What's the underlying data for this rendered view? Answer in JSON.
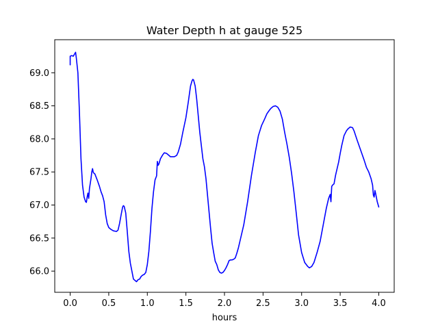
{
  "chart_data": {
    "type": "line",
    "title": "Water Depth h at gauge 525",
    "xlabel": "hours",
    "ylabel": "",
    "xlim": [
      -0.2,
      4.2
    ],
    "ylim": [
      65.68,
      69.5
    ],
    "xticks": [
      0.0,
      0.5,
      1.0,
      1.5,
      2.0,
      2.5,
      3.0,
      3.5,
      4.0
    ],
    "xtick_labels": [
      "0.0",
      "0.5",
      "1.0",
      "1.5",
      "2.0",
      "2.5",
      "3.0",
      "3.5",
      "4.0"
    ],
    "yticks": [
      66.0,
      66.5,
      67.0,
      67.5,
      68.0,
      68.5,
      69.0
    ],
    "ytick_labels": [
      "66.0",
      "66.5",
      "67.0",
      "67.5",
      "68.0",
      "68.5",
      "69.0"
    ],
    "grid": false,
    "legend": "none",
    "series": [
      {
        "color": "#0000ff",
        "points": [
          [
            0.0,
            69.12
          ],
          [
            0.0,
            69.25
          ],
          [
            0.02,
            69.26
          ],
          [
            0.04,
            69.25
          ],
          [
            0.06,
            69.29
          ],
          [
            0.07,
            69.31
          ],
          [
            0.08,
            69.22
          ],
          [
            0.1,
            69.0
          ],
          [
            0.12,
            68.4
          ],
          [
            0.14,
            67.7
          ],
          [
            0.16,
            67.3
          ],
          [
            0.18,
            67.12
          ],
          [
            0.2,
            67.05
          ],
          [
            0.21,
            67.04
          ],
          [
            0.22,
            67.12
          ],
          [
            0.23,
            67.18
          ],
          [
            0.24,
            67.1
          ],
          [
            0.25,
            67.25
          ],
          [
            0.27,
            67.4
          ],
          [
            0.28,
            67.5
          ],
          [
            0.29,
            67.55
          ],
          [
            0.3,
            67.49
          ],
          [
            0.32,
            67.47
          ],
          [
            0.35,
            67.38
          ],
          [
            0.38,
            67.28
          ],
          [
            0.4,
            67.2
          ],
          [
            0.42,
            67.14
          ],
          [
            0.44,
            67.05
          ],
          [
            0.46,
            66.85
          ],
          [
            0.48,
            66.72
          ],
          [
            0.5,
            66.66
          ],
          [
            0.53,
            66.63
          ],
          [
            0.56,
            66.61
          ],
          [
            0.6,
            66.6
          ],
          [
            0.62,
            66.62
          ],
          [
            0.64,
            66.72
          ],
          [
            0.66,
            66.85
          ],
          [
            0.68,
            66.97
          ],
          [
            0.69,
            66.99
          ],
          [
            0.7,
            66.98
          ],
          [
            0.72,
            66.88
          ],
          [
            0.74,
            66.6
          ],
          [
            0.76,
            66.3
          ],
          [
            0.78,
            66.12
          ],
          [
            0.8,
            66.0
          ],
          [
            0.82,
            65.88
          ],
          [
            0.84,
            65.86
          ],
          [
            0.86,
            65.84
          ],
          [
            0.88,
            65.87
          ],
          [
            0.9,
            65.88
          ],
          [
            0.92,
            65.92
          ],
          [
            0.94,
            65.94
          ],
          [
            0.96,
            65.95
          ],
          [
            0.98,
            65.98
          ],
          [
            1.0,
            66.1
          ],
          [
            1.02,
            66.3
          ],
          [
            1.04,
            66.6
          ],
          [
            1.06,
            66.95
          ],
          [
            1.08,
            67.2
          ],
          [
            1.1,
            67.38
          ],
          [
            1.12,
            67.44
          ],
          [
            1.13,
            67.66
          ],
          [
            1.14,
            67.6
          ],
          [
            1.15,
            67.62
          ],
          [
            1.17,
            67.7
          ],
          [
            1.2,
            67.76
          ],
          [
            1.22,
            67.79
          ],
          [
            1.25,
            67.78
          ],
          [
            1.28,
            67.75
          ],
          [
            1.3,
            67.73
          ],
          [
            1.32,
            67.73
          ],
          [
            1.35,
            67.73
          ],
          [
            1.38,
            67.75
          ],
          [
            1.4,
            67.8
          ],
          [
            1.43,
            67.92
          ],
          [
            1.46,
            68.1
          ],
          [
            1.5,
            68.32
          ],
          [
            1.53,
            68.55
          ],
          [
            1.56,
            68.8
          ],
          [
            1.58,
            68.88
          ],
          [
            1.59,
            68.9
          ],
          [
            1.6,
            68.89
          ],
          [
            1.62,
            68.8
          ],
          [
            1.64,
            68.6
          ],
          [
            1.66,
            68.35
          ],
          [
            1.68,
            68.1
          ],
          [
            1.7,
            67.9
          ],
          [
            1.72,
            67.7
          ],
          [
            1.74,
            67.58
          ],
          [
            1.76,
            67.4
          ],
          [
            1.78,
            67.15
          ],
          [
            1.8,
            66.9
          ],
          [
            1.82,
            66.65
          ],
          [
            1.84,
            66.42
          ],
          [
            1.86,
            66.28
          ],
          [
            1.88,
            66.15
          ],
          [
            1.9,
            66.1
          ],
          [
            1.92,
            66.02
          ],
          [
            1.94,
            65.98
          ],
          [
            1.96,
            65.97
          ],
          [
            1.98,
            65.98
          ],
          [
            2.0,
            66.01
          ],
          [
            2.02,
            66.05
          ],
          [
            2.04,
            66.1
          ],
          [
            2.06,
            66.16
          ],
          [
            2.08,
            66.17
          ],
          [
            2.1,
            66.17
          ],
          [
            2.12,
            66.18
          ],
          [
            2.14,
            66.2
          ],
          [
            2.16,
            66.27
          ],
          [
            2.18,
            66.35
          ],
          [
            2.2,
            66.45
          ],
          [
            2.25,
            66.7
          ],
          [
            2.3,
            67.05
          ],
          [
            2.35,
            67.45
          ],
          [
            2.4,
            67.8
          ],
          [
            2.44,
            68.05
          ],
          [
            2.48,
            68.2
          ],
          [
            2.52,
            68.3
          ],
          [
            2.55,
            68.38
          ],
          [
            2.58,
            68.43
          ],
          [
            2.6,
            68.46
          ],
          [
            2.63,
            68.49
          ],
          [
            2.66,
            68.5
          ],
          [
            2.69,
            68.48
          ],
          [
            2.72,
            68.42
          ],
          [
            2.75,
            68.3
          ],
          [
            2.78,
            68.1
          ],
          [
            2.81,
            67.92
          ],
          [
            2.84,
            67.72
          ],
          [
            2.87,
            67.48
          ],
          [
            2.9,
            67.2
          ],
          [
            2.93,
            66.88
          ],
          [
            2.96,
            66.55
          ],
          [
            3.0,
            66.28
          ],
          [
            3.04,
            66.13
          ],
          [
            3.08,
            66.07
          ],
          [
            3.1,
            66.05
          ],
          [
            3.13,
            66.07
          ],
          [
            3.16,
            66.13
          ],
          [
            3.2,
            66.28
          ],
          [
            3.24,
            66.45
          ],
          [
            3.28,
            66.7
          ],
          [
            3.32,
            66.95
          ],
          [
            3.35,
            67.1
          ],
          [
            3.37,
            67.16
          ],
          [
            3.38,
            67.05
          ],
          [
            3.39,
            67.28
          ],
          [
            3.4,
            67.3
          ],
          [
            3.42,
            67.32
          ],
          [
            3.44,
            67.45
          ],
          [
            3.46,
            67.55
          ],
          [
            3.48,
            67.65
          ],
          [
            3.5,
            67.78
          ],
          [
            3.52,
            67.9
          ],
          [
            3.55,
            68.05
          ],
          [
            3.58,
            68.12
          ],
          [
            3.6,
            68.15
          ],
          [
            3.63,
            68.18
          ],
          [
            3.66,
            68.17
          ],
          [
            3.68,
            68.12
          ],
          [
            3.7,
            68.05
          ],
          [
            3.72,
            67.98
          ],
          [
            3.75,
            67.88
          ],
          [
            3.78,
            67.78
          ],
          [
            3.81,
            67.68
          ],
          [
            3.84,
            67.57
          ],
          [
            3.87,
            67.5
          ],
          [
            3.9,
            67.4
          ],
          [
            3.92,
            67.3
          ],
          [
            3.93,
            67.15
          ],
          [
            3.94,
            67.12
          ],
          [
            3.95,
            67.22
          ],
          [
            3.96,
            67.17
          ],
          [
            3.98,
            67.05
          ],
          [
            4.0,
            66.97
          ]
        ]
      }
    ]
  }
}
